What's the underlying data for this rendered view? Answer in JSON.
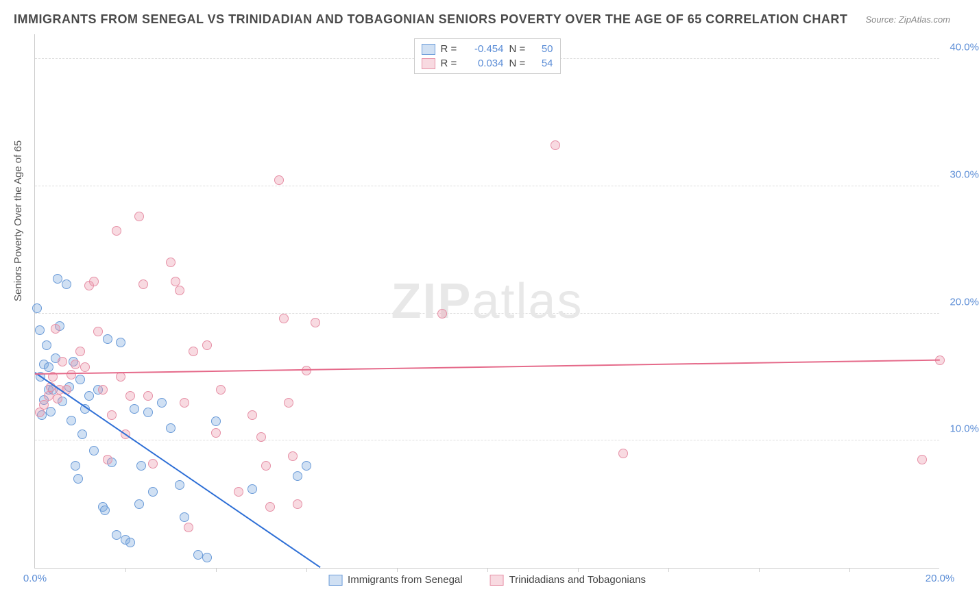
{
  "title": "IMMIGRANTS FROM SENEGAL VS TRINIDADIAN AND TOBAGONIAN SENIORS POVERTY OVER THE AGE OF 65 CORRELATION CHART",
  "source": "Source: ZipAtlas.com",
  "watermark_a": "ZIP",
  "watermark_b": "atlas",
  "ylabel": "Seniors Poverty Over the Age of 65",
  "chart": {
    "type": "scatter",
    "xlim": [
      0,
      20
    ],
    "ylim": [
      0,
      42
    ],
    "xtick_labels": [
      "0.0%",
      "20.0%"
    ],
    "xtick_positions": [
      0,
      20
    ],
    "xtick_minor": [
      2,
      4,
      6,
      8,
      10,
      12,
      14,
      16,
      18
    ],
    "ytick_labels": [
      "10.0%",
      "20.0%",
      "30.0%",
      "40.0%"
    ],
    "ytick_positions": [
      10,
      20,
      30,
      40
    ],
    "grid_color": "#dddddd",
    "axis_color": "#cccccc",
    "background_color": "#ffffff",
    "point_radius": 7,
    "series": [
      {
        "name": "Immigrants from Senegal",
        "fill": "rgba(120,165,220,0.35)",
        "stroke": "#6a9bd8",
        "trend_color": "#2e6fd6",
        "R": "-0.454",
        "N": "50",
        "trend": {
          "x1": 0,
          "y1": 15.3,
          "x2": 6.3,
          "y2": 0
        },
        "points": [
          [
            0.05,
            20.4
          ],
          [
            0.1,
            18.7
          ],
          [
            0.12,
            15.0
          ],
          [
            0.15,
            12.0
          ],
          [
            0.2,
            13.2
          ],
          [
            0.2,
            16.0
          ],
          [
            0.25,
            17.5
          ],
          [
            0.3,
            14.0
          ],
          [
            0.3,
            15.8
          ],
          [
            0.35,
            12.3
          ],
          [
            0.4,
            14.0
          ],
          [
            0.45,
            16.5
          ],
          [
            0.5,
            22.7
          ],
          [
            0.55,
            19.0
          ],
          [
            0.6,
            13.1
          ],
          [
            0.7,
            22.3
          ],
          [
            0.75,
            14.2
          ],
          [
            0.8,
            11.6
          ],
          [
            0.85,
            16.2
          ],
          [
            0.9,
            8.0
          ],
          [
            0.95,
            7.0
          ],
          [
            1.0,
            14.8
          ],
          [
            1.05,
            10.5
          ],
          [
            1.1,
            12.5
          ],
          [
            1.2,
            13.5
          ],
          [
            1.3,
            9.2
          ],
          [
            1.4,
            14.0
          ],
          [
            1.5,
            4.8
          ],
          [
            1.55,
            4.5
          ],
          [
            1.6,
            18.0
          ],
          [
            1.7,
            8.3
          ],
          [
            1.8,
            2.6
          ],
          [
            1.9,
            17.7
          ],
          [
            2.0,
            2.2
          ],
          [
            2.1,
            2.0
          ],
          [
            2.2,
            12.5
          ],
          [
            2.3,
            5.0
          ],
          [
            2.35,
            8.0
          ],
          [
            2.5,
            12.2
          ],
          [
            2.6,
            6.0
          ],
          [
            2.8,
            13.0
          ],
          [
            3.0,
            11.0
          ],
          [
            3.2,
            6.5
          ],
          [
            3.3,
            4.0
          ],
          [
            3.6,
            1.0
          ],
          [
            3.8,
            0.8
          ],
          [
            4.0,
            11.5
          ],
          [
            4.8,
            6.2
          ],
          [
            5.8,
            7.2
          ],
          [
            6.0,
            8.0
          ]
        ]
      },
      {
        "name": "Trinidadians and Tobagonians",
        "fill": "rgba(235,150,170,0.35)",
        "stroke": "#e690a6",
        "trend_color": "#e56a8a",
        "R": "0.034",
        "N": "54",
        "trend": {
          "x1": 0,
          "y1": 15.2,
          "x2": 20,
          "y2": 16.3
        },
        "points": [
          [
            0.1,
            12.2
          ],
          [
            0.2,
            12.8
          ],
          [
            0.3,
            13.5
          ],
          [
            0.35,
            14.2
          ],
          [
            0.4,
            15.0
          ],
          [
            0.45,
            18.8
          ],
          [
            0.5,
            13.3
          ],
          [
            0.55,
            14.0
          ],
          [
            0.6,
            16.2
          ],
          [
            0.7,
            14.0
          ],
          [
            0.8,
            15.2
          ],
          [
            0.9,
            16.0
          ],
          [
            1.0,
            17.0
          ],
          [
            1.1,
            15.8
          ],
          [
            1.2,
            22.2
          ],
          [
            1.3,
            22.5
          ],
          [
            1.4,
            18.6
          ],
          [
            1.5,
            14.0
          ],
          [
            1.6,
            8.5
          ],
          [
            1.7,
            12.0
          ],
          [
            1.8,
            26.5
          ],
          [
            1.9,
            15.0
          ],
          [
            2.0,
            10.5
          ],
          [
            2.1,
            13.5
          ],
          [
            2.3,
            27.6
          ],
          [
            2.4,
            22.3
          ],
          [
            2.5,
            13.5
          ],
          [
            2.6,
            8.2
          ],
          [
            3.0,
            24.0
          ],
          [
            3.1,
            22.5
          ],
          [
            3.2,
            21.8
          ],
          [
            3.3,
            13.0
          ],
          [
            3.4,
            3.2
          ],
          [
            3.5,
            17.0
          ],
          [
            3.8,
            17.5
          ],
          [
            4.0,
            10.6
          ],
          [
            4.1,
            14.0
          ],
          [
            4.5,
            6.0
          ],
          [
            4.8,
            12.0
          ],
          [
            5.0,
            10.3
          ],
          [
            5.1,
            8.0
          ],
          [
            5.2,
            4.8
          ],
          [
            5.4,
            30.5
          ],
          [
            5.5,
            19.6
          ],
          [
            5.6,
            13.0
          ],
          [
            5.7,
            8.8
          ],
          [
            5.8,
            5.0
          ],
          [
            6.0,
            15.5
          ],
          [
            6.2,
            19.3
          ],
          [
            9.0,
            20.0
          ],
          [
            11.5,
            33.2
          ],
          [
            13.0,
            9.0
          ],
          [
            19.6,
            8.5
          ],
          [
            20.0,
            16.3
          ]
        ]
      }
    ]
  }
}
